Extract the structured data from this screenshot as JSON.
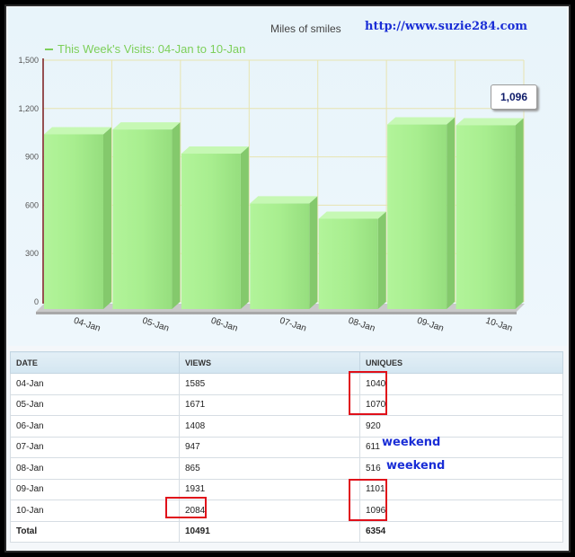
{
  "header": {
    "caption": "Miles of smiles",
    "site_url": "http://www.suzie284.com"
  },
  "chart_data": {
    "type": "bar",
    "title": "",
    "legend": "This Week's Visits: 04-Jan to 10-Jan",
    "legend_position": "top-left",
    "categories": [
      "04-Jan",
      "05-Jan",
      "06-Jan",
      "07-Jan",
      "08-Jan",
      "09-Jan",
      "10-Jan"
    ],
    "series": [
      {
        "name": "This Week's Visits: 04-Jan to 10-Jan",
        "values": [
          1040,
          1070,
          920,
          611,
          516,
          1101,
          1096
        ]
      }
    ],
    "y_ticks": [
      "0",
      "300",
      "600",
      "900",
      "1,200",
      "1,500"
    ],
    "y_tick_values": [
      0,
      300,
      600,
      900,
      1200,
      1500
    ],
    "ylim": [
      0,
      1500
    ],
    "grid": true,
    "tooltip": "1,096",
    "bar_color": "#a4ec8c"
  },
  "table": {
    "headers": [
      "DATE",
      "VIEWS",
      "UNIQUES"
    ],
    "rows": [
      [
        "04-Jan",
        "1585",
        "1040"
      ],
      [
        "05-Jan",
        "1671",
        "1070"
      ],
      [
        "06-Jan",
        "1408",
        "920"
      ],
      [
        "07-Jan",
        "947",
        "611"
      ],
      [
        "08-Jan",
        "865",
        "516"
      ],
      [
        "09-Jan",
        "1931",
        "1101"
      ],
      [
        "10-Jan",
        "2084",
        "1096"
      ]
    ],
    "total": [
      "Total",
      "10491",
      "6354"
    ]
  },
  "annotations": {
    "weekend_1": "weekend",
    "weekend_2": "weekend",
    "highlight_color": "#e0101a"
  }
}
